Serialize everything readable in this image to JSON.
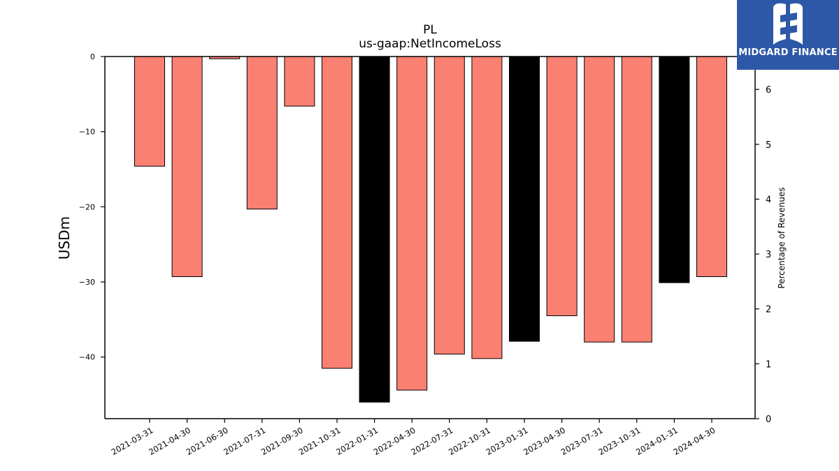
{
  "chart_data": {
    "type": "bar",
    "title": "PL",
    "subtitle": "us-gaap:NetIncomeLoss",
    "ylabel": "USDm",
    "ylabel_right": "Percentage of Revenues",
    "ylim": [
      -48.2,
      0
    ],
    "ylim_right": [
      0,
      6.6
    ],
    "yticks": [
      0,
      -10,
      -20,
      -30,
      -40
    ],
    "yticks_right": [
      0,
      1,
      2,
      3,
      4,
      5,
      6
    ],
    "categories": [
      "2021-03-31",
      "2021-04-30",
      "2021-06-30",
      "2021-07-31",
      "2021-09-30",
      "2021-10-31",
      "2022-01-31",
      "2022-04-30",
      "2022-07-31",
      "2022-10-31",
      "2023-01-31",
      "2023-04-30",
      "2023-07-31",
      "2023-10-31",
      "2024-01-31",
      "2024-04-30"
    ],
    "values": [
      -14.6,
      -29.3,
      -0.3,
      -20.3,
      -6.6,
      -41.5,
      -46.0,
      -44.4,
      -39.6,
      -40.2,
      -37.9,
      -34.5,
      -38.0,
      -38.0,
      -30.1,
      -29.3
    ],
    "bar_colors": [
      "#fa8072",
      "#fa8072",
      "#fa8072",
      "#fa8072",
      "#fa8072",
      "#fa8072",
      "#000000",
      "#fa8072",
      "#fa8072",
      "#fa8072",
      "#000000",
      "#fa8072",
      "#fa8072",
      "#fa8072",
      "#000000",
      "#fa8072"
    ],
    "grid": false,
    "legend": "none"
  },
  "logo": {
    "text": "MIDGARD FINANCE",
    "background": "#2d58a7"
  }
}
